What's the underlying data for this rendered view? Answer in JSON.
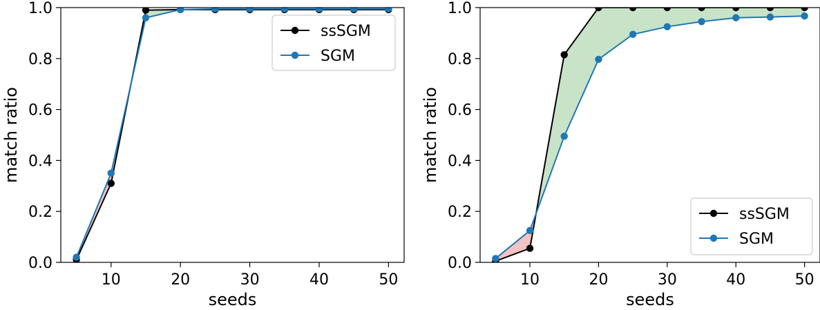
{
  "chart_data": [
    {
      "type": "line",
      "x": [
        5,
        10,
        15,
        20,
        25,
        30,
        35,
        40,
        45,
        50
      ],
      "xlabel": "seeds",
      "ylabel": "match ratio",
      "xlim": [
        2.75,
        52.25
      ],
      "ylim": [
        0,
        1
      ],
      "xticks": [
        10,
        20,
        30,
        40,
        50
      ],
      "yticks": [
        0.0,
        0.2,
        0.4,
        0.6,
        0.8,
        1.0
      ],
      "xtick_labels": [
        "10",
        "20",
        "30",
        "40",
        "50"
      ],
      "ytick_labels": [
        "0.0",
        "0.2",
        "0.4",
        "0.6",
        "0.8",
        "1.0"
      ],
      "legend_position": "top-right",
      "fill_between": true,
      "series": [
        {
          "name": "ssSGM",
          "color": "#000000",
          "values": [
            0.01,
            0.31,
            0.99,
            0.992,
            0.992,
            0.992,
            0.992,
            0.992,
            0.992,
            0.992
          ]
        },
        {
          "name": "SGM",
          "color": "#1f77b4",
          "values": [
            0.02,
            0.35,
            0.96,
            0.992,
            0.995,
            0.995,
            0.995,
            0.995,
            0.995,
            0.995
          ]
        }
      ]
    },
    {
      "type": "line",
      "x": [
        5,
        10,
        15,
        20,
        25,
        30,
        35,
        40,
        45,
        50
      ],
      "xlabel": "seeds",
      "ylabel": "match ratio",
      "xlim": [
        2.75,
        52.25
      ],
      "ylim": [
        0,
        1
      ],
      "xticks": [
        10,
        20,
        30,
        40,
        50
      ],
      "yticks": [
        0.0,
        0.2,
        0.4,
        0.6,
        0.8,
        1.0
      ],
      "xtick_labels": [
        "10",
        "20",
        "30",
        "40",
        "50"
      ],
      "ytick_labels": [
        "0.0",
        "0.2",
        "0.4",
        "0.6",
        "0.8",
        "1.0"
      ],
      "legend_position": "lower-right",
      "fill_between": true,
      "series": [
        {
          "name": "ssSGM",
          "color": "#000000",
          "values": [
            0.005,
            0.055,
            0.815,
            1.0,
            1.0,
            1.0,
            1.0,
            1.0,
            1.0,
            1.0
          ]
        },
        {
          "name": "SGM",
          "color": "#1f77b4",
          "values": [
            0.015,
            0.125,
            0.495,
            0.797,
            0.895,
            0.925,
            0.945,
            0.96,
            0.963,
            0.967
          ]
        }
      ]
    }
  ],
  "colors": {
    "fill_positive": "#c8e3c8",
    "fill_negative": "#f5c2c2"
  }
}
